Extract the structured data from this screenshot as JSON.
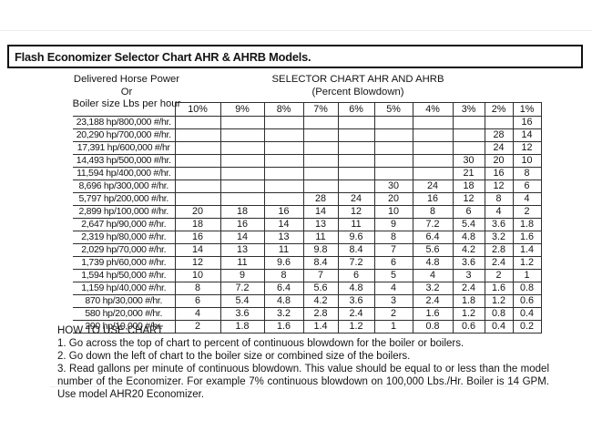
{
  "title": "Flash Economizer Selector Chart AHR & AHRB Models.",
  "left_header": {
    "line1": "Delivered Horse Power",
    "line2": "Or",
    "line3": "Boiler size Lbs per hour"
  },
  "right_header": {
    "line1": "SELECTOR CHART AHR AND AHRB",
    "line2": "(Percent Blowdown)"
  },
  "table": {
    "columns": [
      "10%",
      "9%",
      "8%",
      "7%",
      "6%",
      "5%",
      "4%",
      "3%",
      "2%",
      "1%"
    ],
    "rows": [
      {
        "label": "23,188 hp/800,000 #/hr.",
        "values": [
          "",
          "",
          "",
          "",
          "",
          "",
          "",
          "",
          "",
          "16"
        ]
      },
      {
        "label": "20,290 hp/700,000 #/hr.",
        "values": [
          "",
          "",
          "",
          "",
          "",
          "",
          "",
          "",
          "28",
          "14"
        ]
      },
      {
        "label": "17,391 hp/600,000 #/hr",
        "values": [
          "",
          "",
          "",
          "",
          "",
          "",
          "",
          "",
          "24",
          "12"
        ]
      },
      {
        "label": "14,493 hp/500,000 #/hr.",
        "values": [
          "",
          "",
          "",
          "",
          "",
          "",
          "",
          "30",
          "20",
          "10"
        ]
      },
      {
        "label": "11,594 hp/400,000 #/hr.",
        "values": [
          "",
          "",
          "",
          "",
          "",
          "",
          "",
          "21",
          "16",
          "8"
        ]
      },
      {
        "label": "8,696 hp/300,000 #/hr.",
        "values": [
          "",
          "",
          "",
          "",
          "",
          "30",
          "24",
          "18",
          "12",
          "6"
        ]
      },
      {
        "label": "5,797 hp/200,000 #/hr.",
        "values": [
          "",
          "",
          "",
          "28",
          "24",
          "20",
          "16",
          "12",
          "8",
          "4"
        ]
      },
      {
        "label": "2,899 hp/100,000 #/hr.",
        "values": [
          "20",
          "18",
          "16",
          "14",
          "12",
          "10",
          "8",
          "6",
          "4",
          "2"
        ]
      },
      {
        "label": "2,647 hp/90,000 #/hr.",
        "values": [
          "18",
          "16",
          "14",
          "13",
          "11",
          "9",
          "7.2",
          "5.4",
          "3.6",
          "1.8"
        ]
      },
      {
        "label": "2,319 hp/80,000 #/hr.",
        "values": [
          "16",
          "14",
          "13",
          "11",
          "9.6",
          "8",
          "6.4",
          "4.8",
          "3.2",
          "1.6"
        ]
      },
      {
        "label": "2,029 hp/70,000 #/hr.",
        "values": [
          "14",
          "13",
          "11",
          "9.8",
          "8.4",
          "7",
          "5.6",
          "4.2",
          "2.8",
          "1.4"
        ]
      },
      {
        "label": "1,739 ph/60,000 #/hr.",
        "values": [
          "12",
          "11",
          "9.6",
          "8.4",
          "7.2",
          "6",
          "4.8",
          "3.6",
          "2.4",
          "1.2"
        ]
      },
      {
        "label": "1,594 hp/50,000 #/hr.",
        "values": [
          "10",
          "9",
          "8",
          "7",
          "6",
          "5",
          "4",
          "3",
          "2",
          "1"
        ]
      },
      {
        "label": "1,159 hp/40,000 #/hr.",
        "values": [
          "8",
          "7.2",
          "6.4",
          "5.6",
          "4.8",
          "4",
          "3.2",
          "2.4",
          "1.6",
          "0.8"
        ]
      },
      {
        "label": "870 hp/30,000 #/hr.",
        "values": [
          "6",
          "5.4",
          "4.8",
          "4.2",
          "3.6",
          "3",
          "2.4",
          "1.8",
          "1.2",
          "0.6"
        ]
      },
      {
        "label": "580 hp/20,000 #/hr.",
        "values": [
          "4",
          "3.6",
          "3.2",
          "2.8",
          "2.4",
          "2",
          "1.6",
          "1.2",
          "0.8",
          "0.4"
        ]
      },
      {
        "label": "290 hp/10,000 #/hr.",
        "values": [
          "2",
          "1.8",
          "1.6",
          "1.4",
          "1.2",
          "1",
          "0.8",
          "0.6",
          "0.4",
          "0.2"
        ]
      }
    ]
  },
  "how_to_use": {
    "heading": "HOW TO USE CHART",
    "steps": [
      "1. Go across the top of chart to percent of continuous blowdown for the boiler or boilers.",
      "2. Go down the left of chart to the boiler size or combined size of the boilers.",
      "3. Read gallons per minute of continuous blowdown. This value should be equal to or less than the model number of the Economizer. For example 7% continuous blowdown on 100,000 Lbs./Hr. Boiler is 14 GPM. Use model AHR20 Economizer."
    ]
  },
  "colors": {
    "page_background": "#ffffff",
    "text": "#141414",
    "grid_border": "#2e2e2e",
    "title_border": "#101010"
  }
}
